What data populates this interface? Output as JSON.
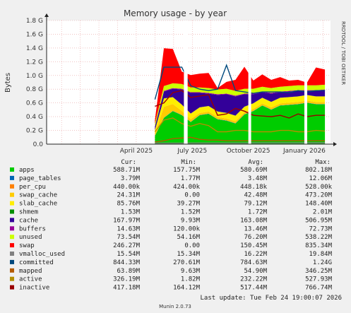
{
  "chart_data": {
    "type": "area",
    "title": "Memory usage - by year",
    "ylabel": "Bytes",
    "side_text": "RRDTOOL / TOBI OETIKER",
    "ylim": [
      0,
      1.8
    ],
    "y_ticks": [
      "0.0",
      "0.2 G",
      "0.4 G",
      "0.6 G",
      "0.8 G",
      "1.0 G",
      "1.2 G",
      "1.4 G",
      "1.6 G",
      "1.8 G"
    ],
    "x_ticks": [
      "April 2025",
      "July 2025",
      "October 2025",
      "January 2026"
    ],
    "x_tick_months": [
      3.0,
      6.0,
      9.0,
      12.0
    ],
    "x_range_months": [
      -1.8,
      13.4
    ],
    "gaps": [
      [
        5.55,
        5.75
      ],
      [
        9.0,
        9.15
      ],
      [
        12.0,
        12.15
      ]
    ],
    "data_start_month": 4.0,
    "series": [
      {
        "name": "apps",
        "color": "#00cc00",
        "values": [
          0.12,
          0.38,
          0.48,
          0.42,
          0.32,
          0.42,
          0.44,
          0.36,
          0.34,
          0.3,
          0.43,
          0.48,
          0.56,
          0.5,
          0.56,
          0.57,
          0.58,
          0.6,
          0.58,
          0.58
        ]
      },
      {
        "name": "page_tables",
        "color": "#0066b3",
        "values": [
          0.004,
          0.004,
          0.004,
          0.004,
          0.004,
          0.004,
          0.004,
          0.004,
          0.004,
          0.004,
          0.004,
          0.004,
          0.004,
          0.004,
          0.004,
          0.004,
          0.004,
          0.004,
          0.004,
          0.004
        ]
      },
      {
        "name": "per_cpu",
        "color": "#ff8000",
        "values": [
          0.0004,
          0.0004,
          0.0004,
          0.0004,
          0.0004,
          0.0004,
          0.0004,
          0.0004,
          0.0004,
          0.0004,
          0.0004,
          0.0004,
          0.0004,
          0.0004,
          0.0004,
          0.0004,
          0.0004,
          0.0004,
          0.0004,
          0.0004
        ]
      },
      {
        "name": "swap_cache",
        "color": "#ffcc00",
        "values": [
          0.03,
          0.16,
          0.1,
          0.06,
          0.04,
          0.03,
          0.03,
          0.03,
          0.03,
          0.03,
          0.03,
          0.03,
          0.03,
          0.03,
          0.03,
          0.03,
          0.03,
          0.03,
          0.03,
          0.03
        ]
      },
      {
        "name": "slab_cache",
        "color": "#ffee00",
        "values": [
          0.05,
          0.12,
          0.1,
          0.09,
          0.08,
          0.08,
          0.08,
          0.08,
          0.08,
          0.08,
          0.08,
          0.08,
          0.08,
          0.08,
          0.08,
          0.08,
          0.08,
          0.08,
          0.08,
          0.08
        ]
      },
      {
        "name": "shmem",
        "color": "#008f00",
        "values": [
          0.0015,
          0.0015,
          0.0015,
          0.0015,
          0.0015,
          0.0015,
          0.0015,
          0.0015,
          0.0015,
          0.0015,
          0.0015,
          0.0015,
          0.0015,
          0.0015,
          0.0015,
          0.0015,
          0.0015,
          0.0015,
          0.0015,
          0.0015
        ]
      },
      {
        "name": "cache",
        "color": "#330099",
        "values": [
          0.05,
          0.1,
          0.12,
          0.22,
          0.3,
          0.21,
          0.18,
          0.24,
          0.27,
          0.28,
          0.18,
          0.13,
          0.08,
          0.12,
          0.08,
          0.08,
          0.08,
          0.06,
          0.08,
          0.09
        ]
      },
      {
        "name": "buffers",
        "color": "#990099",
        "values": [
          0.003,
          0.01,
          0.01,
          0.01,
          0.01,
          0.01,
          0.01,
          0.01,
          0.01,
          0.01,
          0.01,
          0.01,
          0.01,
          0.01,
          0.01,
          0.01,
          0.01,
          0.01,
          0.01,
          0.01
        ]
      },
      {
        "name": "unused",
        "color": "#ccff00",
        "values": [
          0.04,
          0.07,
          0.07,
          0.07,
          0.07,
          0.07,
          0.07,
          0.07,
          0.07,
          0.07,
          0.07,
          0.07,
          0.07,
          0.07,
          0.07,
          0.07,
          0.07,
          0.07,
          0.07,
          0.07
        ]
      },
      {
        "name": "swap",
        "color": "#ff0000",
        "values": [
          0.05,
          0.55,
          0.5,
          0.18,
          0.18,
          0.2,
          0.22,
          0.02,
          0.1,
          0.16,
          0.32,
          0.12,
          0.18,
          0.12,
          0.14,
          0.08,
          0.08,
          0.04,
          0.26,
          0.22
        ]
      }
    ],
    "line_series": [
      {
        "name": "vmalloc_used",
        "color": "#808080",
        "values": [
          0.015,
          0.015,
          0.015,
          0.015,
          0.016,
          0.016,
          0.016,
          0.016,
          0.016,
          0.016,
          0.016,
          0.017,
          0.017,
          0.017,
          0.017,
          0.017,
          0.017,
          0.018,
          0.018,
          0.018
        ]
      },
      {
        "name": "committed",
        "color": "#00487d",
        "values": [
          0.65,
          1.12,
          1.12,
          1.12,
          0.85,
          0.8,
          0.78,
          0.8,
          1.15,
          0.78,
          0.76,
          0.74,
          0.76,
          0.76,
          0.76,
          0.75,
          0.78,
          0.76,
          0.78,
          0.78
        ]
      },
      {
        "name": "mapped",
        "color": "#b35a00",
        "values": [
          0.03,
          0.05,
          0.08,
          0.09,
          0.1,
          0.07,
          0.06,
          0.06,
          0.05,
          0.05,
          0.05,
          0.05,
          0.05,
          0.05,
          0.05,
          0.05,
          0.05,
          0.05,
          0.05,
          0.05
        ]
      },
      {
        "name": "active",
        "color": "#b38f00",
        "values": [
          0.18,
          0.35,
          0.38,
          0.3,
          0.26,
          0.3,
          0.27,
          0.18,
          0.18,
          0.2,
          0.2,
          0.18,
          0.18,
          0.18,
          0.2,
          0.2,
          0.18,
          0.18,
          0.2,
          0.19
        ]
      },
      {
        "name": "inactive",
        "color": "#990000",
        "values": [
          0.55,
          0.6,
          0.75,
          0.78,
          0.68,
          0.7,
          0.72,
          0.42,
          0.44,
          0.52,
          0.48,
          0.42,
          0.41,
          0.4,
          0.42,
          0.38,
          0.44,
          0.4,
          0.42,
          0.42
        ]
      }
    ]
  },
  "legend": {
    "headers": {
      "cur": "Cur:",
      "min": "Min:",
      "avg": "Avg:",
      "max": "Max:"
    },
    "rows": [
      {
        "name": "apps",
        "color": "#00cc00",
        "cur": "588.71M",
        "min": "157.75M",
        "avg": "580.69M",
        "max": "802.18M"
      },
      {
        "name": "page_tables",
        "color": "#0066b3",
        "cur": "3.79M",
        "min": "1.77M",
        "avg": "3.48M",
        "max": "12.06M"
      },
      {
        "name": "per_cpu",
        "color": "#ff8000",
        "cur": "440.00k",
        "min": "424.00k",
        "avg": "448.18k",
        "max": "528.00k"
      },
      {
        "name": "swap_cache",
        "color": "#ffcc00",
        "cur": "24.31M",
        "min": "0.00",
        "avg": "42.48M",
        "max": "473.20M"
      },
      {
        "name": "slab_cache",
        "color": "#ffee00",
        "cur": "85.76M",
        "min": "39.27M",
        "avg": "79.12M",
        "max": "148.40M"
      },
      {
        "name": "shmem",
        "color": "#008f00",
        "cur": "1.53M",
        "min": "1.52M",
        "avg": "1.72M",
        "max": "2.01M"
      },
      {
        "name": "cache",
        "color": "#330099",
        "cur": "167.97M",
        "min": "9.93M",
        "avg": "163.08M",
        "max": "506.95M"
      },
      {
        "name": "buffers",
        "color": "#990099",
        "cur": "14.63M",
        "min": "120.00k",
        "avg": "13.46M",
        "max": "72.73M"
      },
      {
        "name": "unused",
        "color": "#ccff00",
        "cur": "73.54M",
        "min": "54.16M",
        "avg": "76.20M",
        "max": "538.22M"
      },
      {
        "name": "swap",
        "color": "#ff0000",
        "cur": "246.27M",
        "min": "0.00",
        "avg": "150.45M",
        "max": "835.34M"
      },
      {
        "name": "vmalloc_used",
        "color": "#808080",
        "cur": "15.54M",
        "min": "15.34M",
        "avg": "16.22M",
        "max": "19.84M"
      },
      {
        "name": "committed",
        "color": "#00487d",
        "cur": "844.33M",
        "min": "270.61M",
        "avg": "784.63M",
        "max": "1.24G"
      },
      {
        "name": "mapped",
        "color": "#b35a00",
        "cur": "63.89M",
        "min": "9.63M",
        "avg": "54.90M",
        "max": "346.25M"
      },
      {
        "name": "active",
        "color": "#b38f00",
        "cur": "326.19M",
        "min": "1.82M",
        "avg": "232.22M",
        "max": "527.93M"
      },
      {
        "name": "inactive",
        "color": "#990000",
        "cur": "417.18M",
        "min": "164.12M",
        "avg": "517.44M",
        "max": "766.74M"
      }
    ]
  },
  "footer": {
    "last_update": "Last update:  Tue Feb 24 19:00:07 2026",
    "munin": "Munin 2.0.73"
  }
}
